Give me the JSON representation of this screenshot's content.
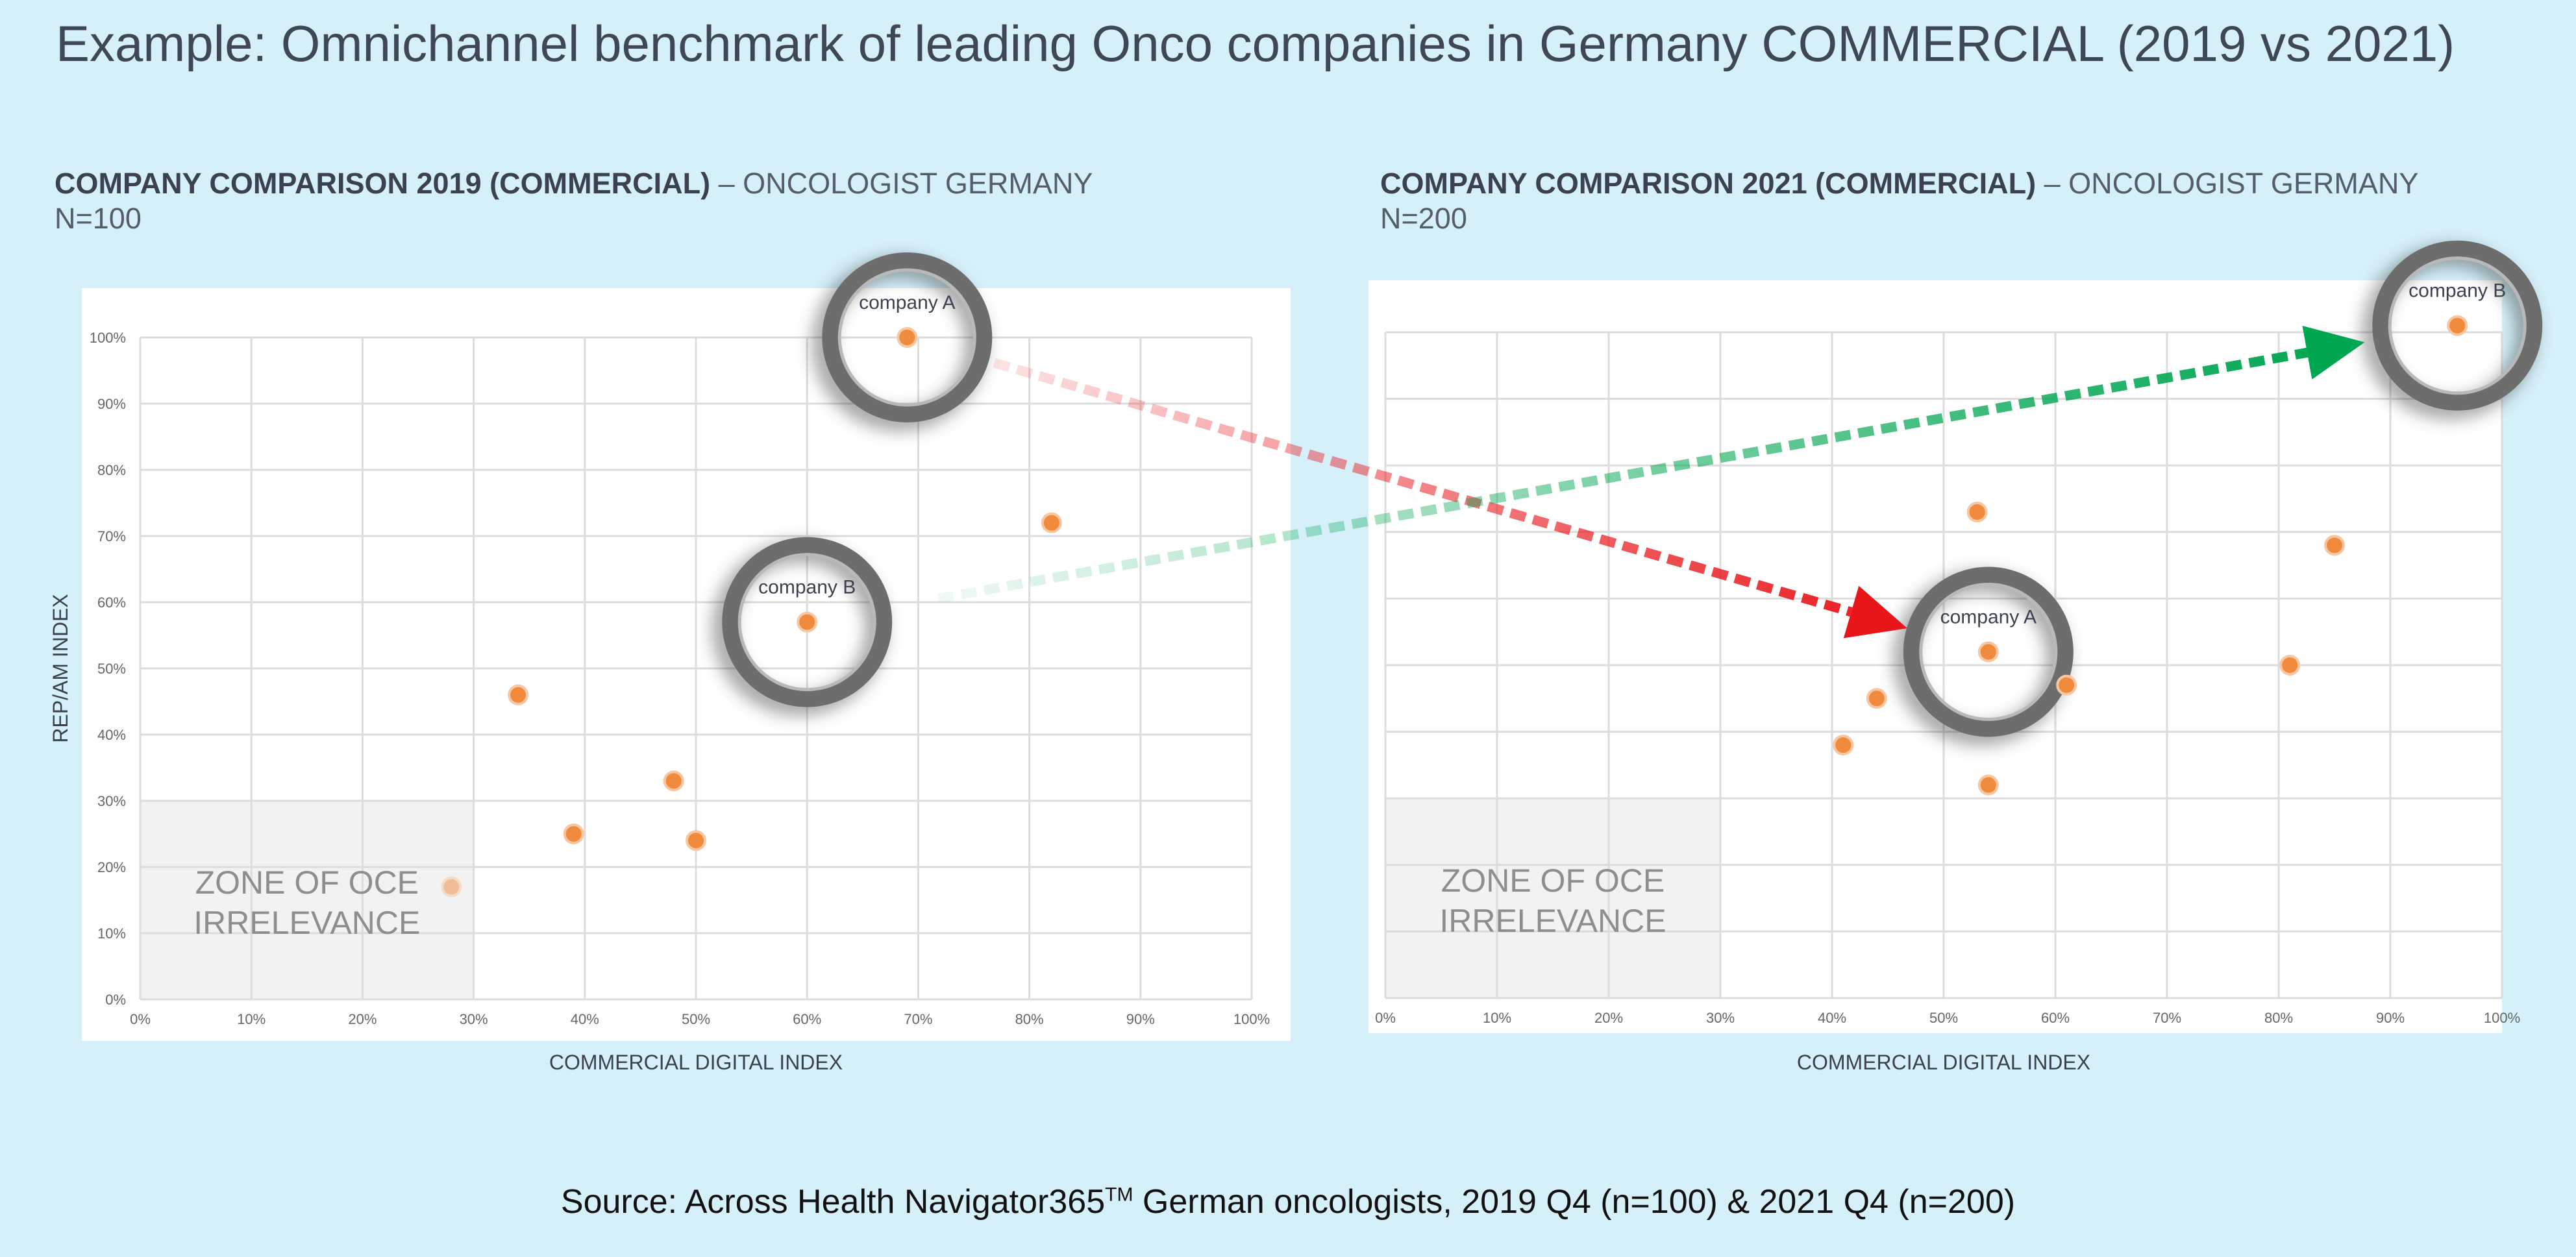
{
  "title": "Example: Omnichannel benchmark of leading Onco companies in Germany COMMERCIAL (2019 vs 2021)",
  "source": {
    "prefix": "Source: Across Health Navigator365",
    "sup": "TM",
    "suffix": " German oncologists, 2019 Q4 (n=100) & 2021 Q4 (n=200)"
  },
  "colors": {
    "background": "#d6f0fa",
    "point": "#f08a3c",
    "decline_arrow": "#e8161b",
    "growth_arrow": "#00a651"
  },
  "chart_data": [
    {
      "type": "scatter",
      "title": "COMPANY COMPARISON 2019 (COMMERCIAL)",
      "title_suffix": " – ONCOLOGIST GERMANY",
      "sample": "N=100",
      "xlabel": "COMMERCIAL DIGITAL INDEX",
      "ylabel": "REP/AM INDEX",
      "xlim": [
        0,
        100
      ],
      "ylim": [
        0,
        100
      ],
      "x_ticks": [
        "0%",
        "10%",
        "20%",
        "30%",
        "40%",
        "50%",
        "60%",
        "70%",
        "80%",
        "90%",
        "100%"
      ],
      "y_ticks": [
        "0%",
        "10%",
        "20%",
        "30%",
        "40%",
        "50%",
        "60%",
        "70%",
        "80%",
        "90%",
        "100%"
      ],
      "grid": true,
      "zone": {
        "label_line1": "ZONE OF OCE",
        "label_line2": "IRRELEVANCE",
        "x_max": 30,
        "y_max": 30
      },
      "points": [
        {
          "x": 69,
          "y": 100,
          "label": "company A",
          "highlighted": true
        },
        {
          "x": 60,
          "y": 57,
          "label": "company B",
          "highlighted": true
        },
        {
          "x": 82,
          "y": 72
        },
        {
          "x": 34,
          "y": 46
        },
        {
          "x": 48,
          "y": 33
        },
        {
          "x": 39,
          "y": 25
        },
        {
          "x": 50,
          "y": 24
        },
        {
          "x": 28,
          "y": 17,
          "faded": true
        }
      ]
    },
    {
      "type": "scatter",
      "title": "COMPANY COMPARISON 2021 (COMMERCIAL)",
      "title_suffix": " – ONCOLOGIST GERMANY",
      "sample": "N=200",
      "xlabel": "COMMERCIAL DIGITAL INDEX",
      "ylabel": "",
      "xlim": [
        0,
        100
      ],
      "ylim": [
        0,
        100
      ],
      "x_ticks": [
        "0%",
        "10%",
        "20%",
        "30%",
        "40%",
        "50%",
        "60%",
        "70%",
        "80%",
        "90%",
        "100%"
      ],
      "grid": true,
      "zone": {
        "label_line1": "ZONE OF OCE",
        "label_line2": "IRRELEVANCE",
        "x_max": 30,
        "y_max": 30
      },
      "points": [
        {
          "x": 96,
          "y": 101,
          "label": "company B",
          "highlighted": true
        },
        {
          "x": 54,
          "y": 52,
          "label": "company A",
          "highlighted": true
        },
        {
          "x": 53,
          "y": 73
        },
        {
          "x": 85,
          "y": 68
        },
        {
          "x": 81,
          "y": 50
        },
        {
          "x": 61,
          "y": 47
        },
        {
          "x": 44,
          "y": 45
        },
        {
          "x": 41,
          "y": 38
        },
        {
          "x": 54,
          "y": 32
        }
      ]
    }
  ],
  "arrows": [
    {
      "name": "company-a-decline-arrow",
      "from": "company A 2019",
      "to": "company A 2021",
      "color": "#e8161b"
    },
    {
      "name": "company-b-growth-arrow",
      "from": "company B 2019",
      "to": "company B 2021",
      "color": "#00a651"
    }
  ]
}
